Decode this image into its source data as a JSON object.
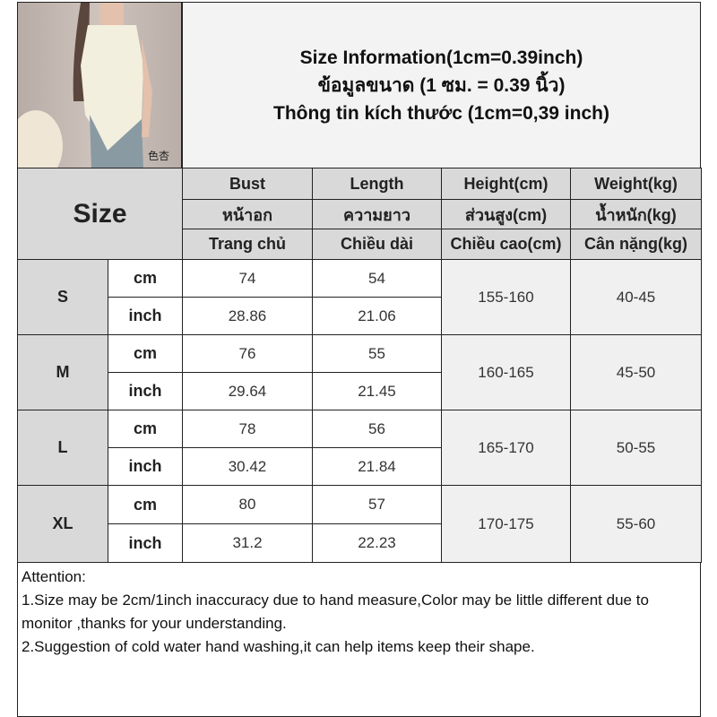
{
  "title": {
    "line1": "Size Information(1cm=0.39inch)",
    "line2": "ข้อมูลขนาด (1 ซม. = 0.39 นิ้ว)",
    "line3": "Thông tin kích thước (1cm=0,39 inch)"
  },
  "photo": {
    "watermark": "色杏"
  },
  "header": {
    "size_label": "Size",
    "columns": [
      {
        "en": "Bust",
        "th": "หน้าอก",
        "vi": "Trang chủ"
      },
      {
        "en": "Length",
        "th": "ความยาว",
        "vi": "Chiều dài"
      },
      {
        "en": "Height(cm)",
        "th": "ส่วนสูง(cm)",
        "vi": "Chiều cao(cm)"
      },
      {
        "en": "Weight(kg)",
        "th": "น้ำหนัก(kg)",
        "vi": "Cân nặng(kg)"
      }
    ]
  },
  "rows": [
    {
      "size": "S",
      "cm_label": "cm",
      "inch_label": "inch",
      "bust_cm": "74",
      "length_cm": "54",
      "bust_inch": "28.86",
      "length_inch": "21.06",
      "height": "155-160",
      "weight": "40-45"
    },
    {
      "size": "M",
      "cm_label": "cm",
      "inch_label": "inch",
      "bust_cm": "76",
      "length_cm": "55",
      "bust_inch": "29.64",
      "length_inch": "21.45",
      "height": "160-165",
      "weight": "45-50"
    },
    {
      "size": "L",
      "cm_label": "cm",
      "inch_label": "inch",
      "bust_cm": "78",
      "length_cm": "56",
      "bust_inch": "30.42",
      "length_inch": "21.84",
      "height": "165-170",
      "weight": "50-55"
    },
    {
      "size": "XL",
      "cm_label": "cm",
      "inch_label": "inch",
      "bust_cm": "80",
      "length_cm": "57",
      "bust_inch": "31.2",
      "length_inch": "22.23",
      "height": "170-175",
      "weight": "55-60"
    }
  ],
  "attention": {
    "heading": "Attention:",
    "line1": "1.Size may be 2cm/1inch inaccuracy due to hand measure,Color may be little different due to monitor ,thanks for your understanding.",
    "line2": "2.Suggestion of cold water hand washing,it can help items keep their shape."
  }
}
